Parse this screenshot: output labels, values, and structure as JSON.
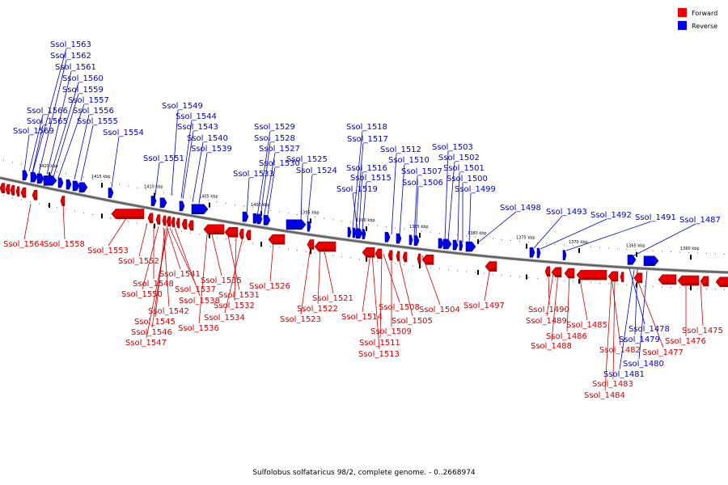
{
  "caption": "Sulfolobus solfataricus 98/2, complete genome. - 0..2668974",
  "legend": [
    {
      "label": "Forward",
      "color": "#ee0000"
    },
    {
      "label": "Reverse",
      "color": "#0000ee"
    }
  ],
  "ticks": [
    "1420 kbp",
    "1415 kbp",
    "1410 kbp",
    "1405 kbp",
    "1400 kbp",
    "1395 kbp",
    "1390 kbp",
    "1385 kbp",
    "1380 kbp",
    "1375 kbp",
    "1370 kbp",
    "1365 kbp",
    "1360 kbp"
  ],
  "reverse_labels": [
    "Ssol_1563",
    "Ssol_1562",
    "Ssol_1561",
    "Ssol_1560",
    "Ssol_1559",
    "Ssol_1557",
    "Ssol_1566",
    "Ssol_1556",
    "Ssol_1565",
    "Ssol_1555",
    "Ssol_1569",
    "Ssol_1554",
    "Ssol_1549",
    "Ssol_1544",
    "Ssol_1543",
    "Ssol_1540",
    "Ssol_1551",
    "Ssol_1539",
    "Ssol_1529",
    "Ssol_1528",
    "Ssol_1527",
    "Ssol_1530",
    "Ssol_1533",
    "Ssol_1525",
    "Ssol_1524",
    "Ssol_1518",
    "Ssol_1517",
    "Ssol_1512",
    "Ssol_1510",
    "Ssol_1516",
    "Ssol_1507",
    "Ssol_1515",
    "Ssol_1506",
    "Ssol_1519",
    "Ssol_1503",
    "Ssol_1502",
    "Ssol_1501",
    "Ssol_1500",
    "Ssol_1499",
    "Ssol_1498",
    "Ssol_1493",
    "Ssol_1492",
    "Ssol_1491",
    "Ssol_1487",
    "Ssol_1478",
    "Ssol_1479",
    "Ssol_1480",
    "Ssol_1481"
  ],
  "forward_labels": [
    "Ssol_1564",
    "Ssol_1558",
    "Ssol_1553",
    "Ssol_1552",
    "Ssol_1541",
    "Ssol_1548",
    "Ssol_1550",
    "Ssol_1537",
    "Ssol_1538",
    "Ssol_1542",
    "Ssol_1545",
    "Ssol_1546",
    "Ssol_1547",
    "Ssol_1535",
    "Ssol_1531",
    "Ssol_1532",
    "Ssol_1534",
    "Ssol_1536",
    "Ssol_1526",
    "Ssol_1521",
    "Ssol_1522",
    "Ssol_1523",
    "Ssol_1514",
    "Ssol_1508",
    "Ssol_1505",
    "Ssol_1509",
    "Ssol_1511",
    "Ssol_1513",
    "Ssol_1504",
    "Ssol_1497",
    "Ssol_1490",
    "Ssol_1489",
    "Ssol_1486",
    "Ssol_1488",
    "Ssol_1485",
    "Ssol_1482",
    "Ssol_1477",
    "Ssol_1475",
    "Ssol_1476",
    "Ssol_1483",
    "Ssol_1484"
  ]
}
